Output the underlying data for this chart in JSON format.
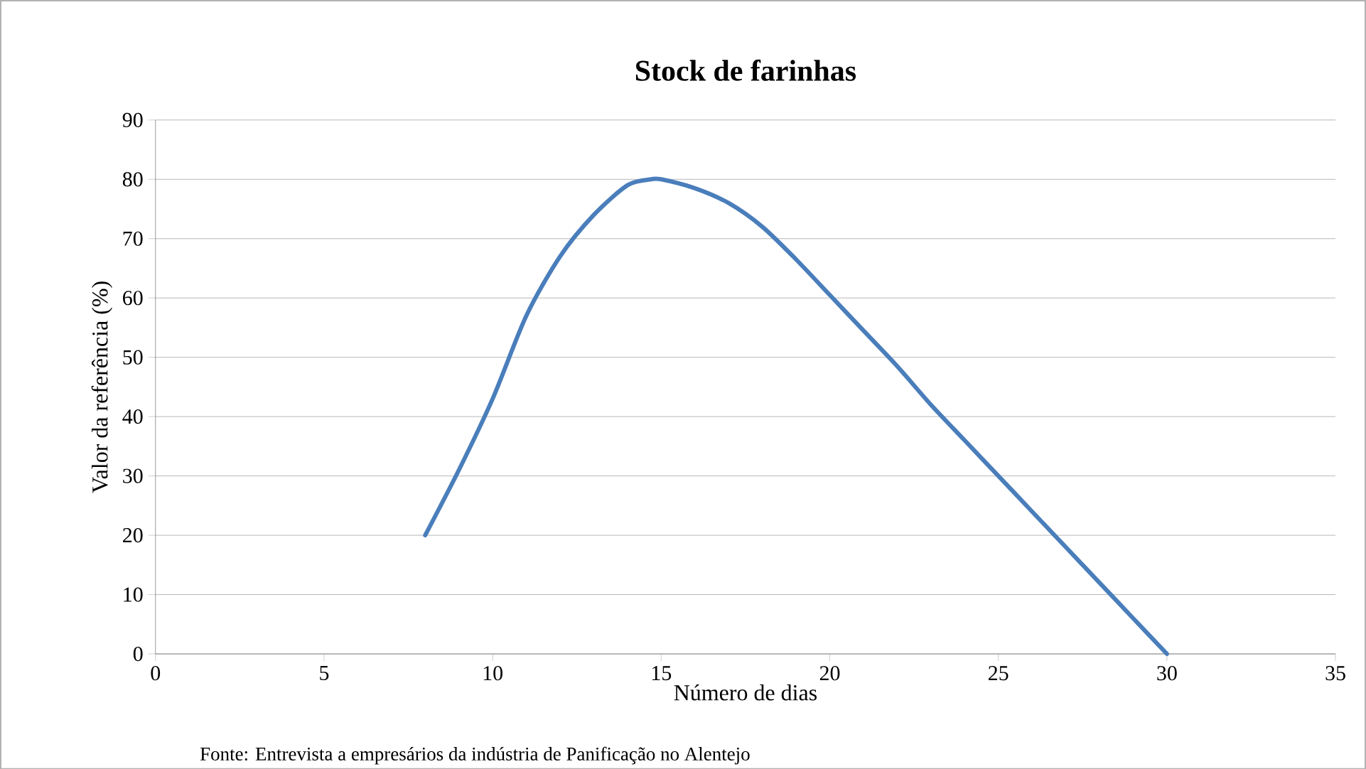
{
  "chart_data": {
    "type": "line",
    "title": "Stock de farinhas",
    "xlabel": "Número de dias",
    "ylabel": "Valor da referência (%)",
    "annotations": [
      "Fonte: Entrevista a empresários da indústria de Panificação no Alentejo"
    ],
    "x": [
      8,
      9,
      10,
      11,
      12,
      13,
      14,
      14.7,
      15,
      16,
      17,
      18,
      19,
      20,
      21,
      22,
      23,
      24,
      25,
      26,
      27,
      28,
      29,
      30
    ],
    "series": [
      {
        "color": "#4a7ebb",
        "values": [
          20,
          31,
          43,
          57,
          67,
          74,
          79,
          80,
          80,
          78.5,
          76,
          72,
          66.5,
          60.5,
          54.5,
          48.5,
          42,
          36,
          30,
          24,
          18,
          12,
          6,
          0
        ]
      }
    ],
    "xlim": [
      0,
      35
    ],
    "xticks": [
      0,
      5,
      10,
      15,
      20,
      25,
      30,
      35
    ],
    "ylim": [
      0,
      90
    ],
    "yticks": [
      0,
      10,
      20,
      30,
      40,
      50,
      60,
      70,
      80,
      90
    ],
    "grid": "y",
    "marker": "none",
    "line_style": "solid"
  }
}
